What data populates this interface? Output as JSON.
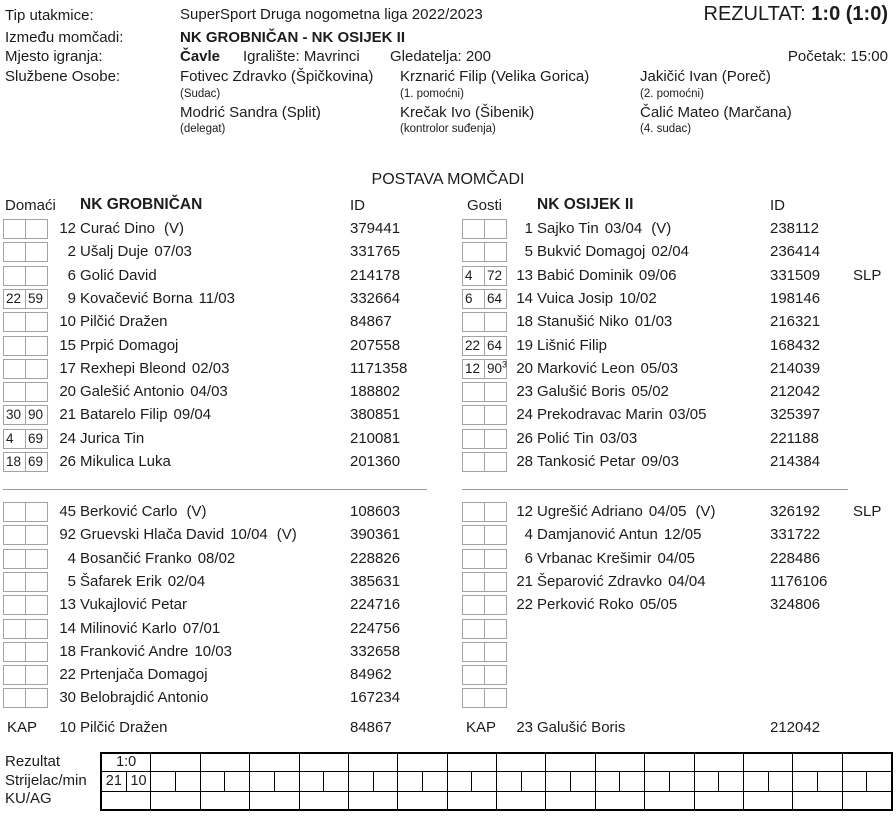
{
  "header": {
    "tip_label": "Tip utakmice:",
    "tip_value": "SuperSport Druga nogometna liga 2022/2023",
    "rezultat_label": "REZULTAT:",
    "rezultat_value": "1:0 (1:0)",
    "izmedu_label": "Između momčadi:",
    "izmedu_value": "NK GROBNIČAN - NK OSIJEK II",
    "mjesto_label": "Mjesto igranja:",
    "mjesto_value": "Čavle",
    "igraliste": "Igralište: Mavrinci",
    "gledatelja": "Gledatelja: 200",
    "pocetak": "Početak: 15:00",
    "sluzbene_label": "Službene Osobe:",
    "officials": [
      {
        "name": "Fotivec Zdravko (Špičkovina)",
        "role": "(Sudac)",
        "name2": "Modrić Sandra (Split)",
        "role2": "(delegat)"
      },
      {
        "name": "Krznarić Filip (Velika Gorica)",
        "role": "(1. pomoćni)",
        "name2": "Krečak Ivo (Šibenik)",
        "role2": "(kontrolor suđenja)"
      },
      {
        "name": "Jakičić Ivan (Poreč)",
        "role": "(2. pomoćni)",
        "name2": "Čalić Mateo (Marčana)",
        "role2": "(4. sudac)"
      }
    ]
  },
  "title": "POSTAVA MOMČADI",
  "teams": [
    {
      "side": "Domaći",
      "name": "NK GROBNIČAN",
      "id_header": "ID",
      "starters": [
        {
          "in": "",
          "min": "",
          "num": "12",
          "name": "Curać Dino",
          "v": "(V)",
          "id": "379441"
        },
        {
          "in": "",
          "min": "",
          "num": "2",
          "name": "Ušalj Duje",
          "dob": "07/03",
          "id": "331765"
        },
        {
          "in": "",
          "min": "",
          "num": "6",
          "name": "Golić David",
          "id": "214178"
        },
        {
          "in": "22",
          "min": "59",
          "num": "9",
          "name": "Kovačević Borna",
          "dob": "11/03",
          "id": "332664"
        },
        {
          "in": "",
          "min": "",
          "num": "10",
          "name": "Pilčić Dražen",
          "id": "84867"
        },
        {
          "in": "",
          "min": "",
          "num": "15",
          "name": "Prpić Domagoj",
          "id": "207558"
        },
        {
          "in": "",
          "min": "",
          "num": "17",
          "name": "Rexhepi Bleond",
          "dob": "02/03",
          "id": "1171358"
        },
        {
          "in": "",
          "min": "",
          "num": "20",
          "name": "Galešić Antonio",
          "dob": "04/03",
          "id": "188802"
        },
        {
          "in": "30",
          "min": "90",
          "num": "21",
          "name": "Batarelo Filip",
          "dob": "09/04",
          "id": "380851"
        },
        {
          "in": "4",
          "min": "69",
          "num": "24",
          "name": "Jurica Tin",
          "id": "210081"
        },
        {
          "in": "18",
          "min": "69",
          "num": "26",
          "name": "Mikulica Luka",
          "id": "201360"
        }
      ],
      "subs": [
        {
          "in": "",
          "min": "",
          "num": "45",
          "name": "Berković Carlo",
          "v": "(V)",
          "id": "108603"
        },
        {
          "in": "",
          "min": "",
          "num": "92",
          "name": "Gruevski Hlača David",
          "dob": "10/04",
          "v": "(V)",
          "id": "390361"
        },
        {
          "in": "",
          "min": "",
          "num": "4",
          "name": "Bosančić Franko",
          "dob": "08/02",
          "id": "228826"
        },
        {
          "in": "",
          "min": "",
          "num": "5",
          "name": "Šafarek Erik",
          "dob": "02/04",
          "id": "385631"
        },
        {
          "in": "",
          "min": "",
          "num": "13",
          "name": "Vukajlović Petar",
          "id": "224716"
        },
        {
          "in": "",
          "min": "",
          "num": "14",
          "name": "Milinović Karlo",
          "dob": "07/01",
          "id": "224756"
        },
        {
          "in": "",
          "min": "",
          "num": "18",
          "name": "Franković Andre",
          "dob": "10/03",
          "id": "332658"
        },
        {
          "in": "",
          "min": "",
          "num": "22",
          "name": "Prtenjača Domagoj",
          "id": "84962"
        },
        {
          "in": "",
          "min": "",
          "num": "30",
          "name": "Belobrajdić Antonio",
          "id": "167234"
        }
      ],
      "kap_label": "KAP",
      "kap": {
        "num": "10",
        "name": "Pilčić Dražen",
        "id": "84867"
      }
    },
    {
      "side": "Gosti",
      "name": "NK OSIJEK II",
      "id_header": "ID",
      "starters": [
        {
          "in": "",
          "min": "",
          "num": "1",
          "name": "Sajko Tin",
          "dob": "03/04",
          "v": "(V)",
          "id": "238112"
        },
        {
          "in": "",
          "min": "",
          "num": "5",
          "name": "Bukvić Domagoj",
          "dob": "02/04",
          "id": "236414"
        },
        {
          "in": "4",
          "min": "72",
          "num": "13",
          "name": "Babić Dominik",
          "dob": "09/06",
          "id": "331509",
          "slp": "SLP"
        },
        {
          "in": "6",
          "min": "64",
          "num": "14",
          "name": "Vuica Josip",
          "dob": "10/02",
          "id": "198146"
        },
        {
          "in": "",
          "min": "",
          "num": "18",
          "name": "Stanušić Niko",
          "dob": "01/03",
          "id": "216321"
        },
        {
          "in": "22",
          "min": "64",
          "num": "19",
          "name": "Lišnić Filip",
          "id": "168432"
        },
        {
          "in": "12",
          "min": "90",
          "min_sup": "3",
          "num": "20",
          "name": "Marković Leon",
          "dob": "05/03",
          "id": "214039"
        },
        {
          "in": "",
          "min": "",
          "num": "23",
          "name": "Galušić Boris",
          "dob": "05/02",
          "id": "212042"
        },
        {
          "in": "",
          "min": "",
          "num": "24",
          "name": "Prekodravac Marin",
          "dob": "03/05",
          "id": "325397"
        },
        {
          "in": "",
          "min": "",
          "num": "26",
          "name": "Polić Tin",
          "dob": "03/03",
          "id": "221188"
        },
        {
          "in": "",
          "min": "",
          "num": "28",
          "name": "Tankosić Petar",
          "dob": "09/03",
          "id": "214384"
        }
      ],
      "subs": [
        {
          "in": "",
          "min": "",
          "num": "12",
          "name": "Ugrešić Adriano",
          "dob": "04/05",
          "v": "(V)",
          "id": "326192",
          "slp": "SLP"
        },
        {
          "in": "",
          "min": "",
          "num": "4",
          "name": "Damjanović Antun",
          "dob": "12/05",
          "id": "331722"
        },
        {
          "in": "",
          "min": "",
          "num": "6",
          "name": "Vrbanac Krešimir",
          "dob": "04/05",
          "id": "228486"
        },
        {
          "in": "",
          "min": "",
          "num": "21",
          "name": "Šeparović Zdravko",
          "dob": "04/04",
          "id": "1176106"
        },
        {
          "in": "",
          "min": "",
          "num": "22",
          "name": "Perković Roko",
          "dob": "05/05",
          "id": "324806"
        },
        {
          "in": "",
          "min": "",
          "num": "",
          "name": "",
          "id": ""
        },
        {
          "in": "",
          "min": "",
          "num": "",
          "name": "",
          "id": ""
        },
        {
          "in": "",
          "min": "",
          "num": "",
          "name": "",
          "id": ""
        },
        {
          "in": "",
          "min": "",
          "num": "",
          "name": "",
          "id": ""
        }
      ],
      "kap_label": "KAP",
      "kap": {
        "num": "23",
        "name": "Galušić Boris",
        "id": "212042"
      }
    }
  ],
  "score_table": {
    "row_labels": [
      "Rezultat",
      "Strijelac/min",
      "KU/AG"
    ],
    "rezultat_cells": [
      "1:0"
    ],
    "strijelac_cells": [
      "21",
      "10"
    ],
    "kuag_cells": []
  }
}
